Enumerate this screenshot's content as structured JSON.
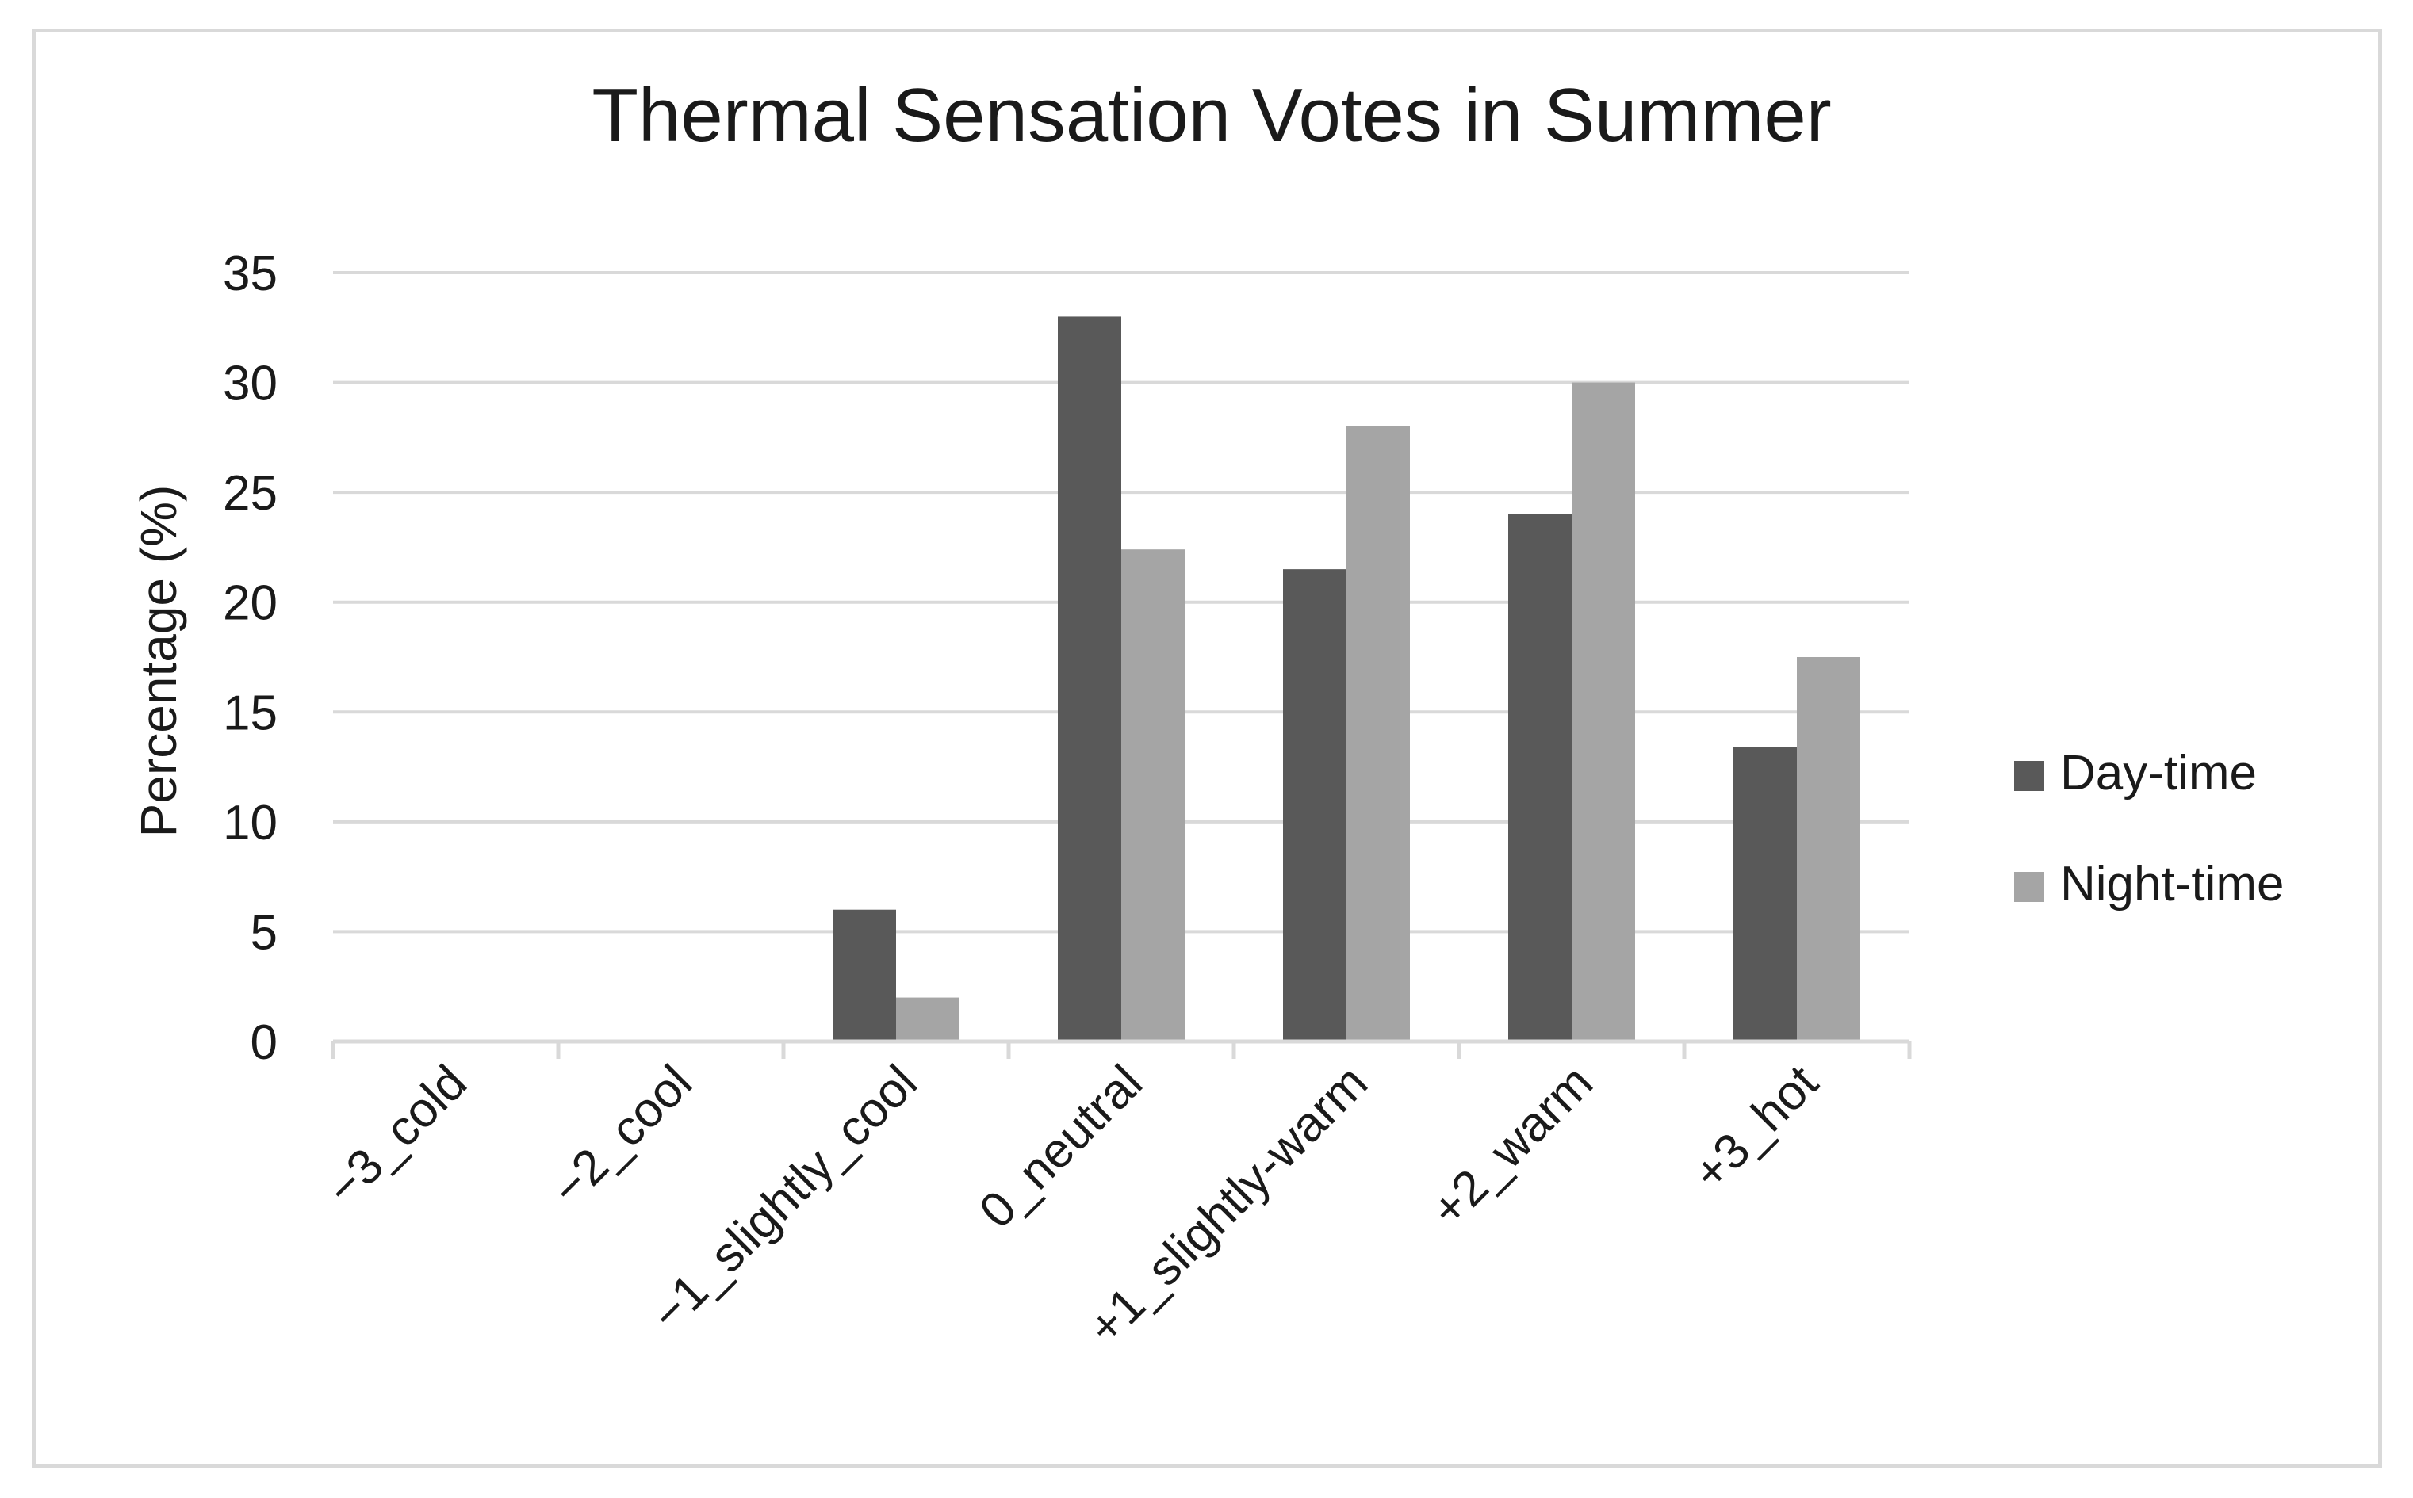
{
  "chart_data": {
    "type": "bar",
    "title": "Thermal Sensation Votes in Summer",
    "ylabel": "Percentage (%)",
    "xlabel": "",
    "ylim": [
      0,
      35
    ],
    "yticks": [
      0,
      5,
      10,
      15,
      20,
      25,
      30,
      35
    ],
    "grid": true,
    "legend_position": "right",
    "categories": [
      "−3_cold",
      "−2_cool",
      "−1_slightly_cool",
      "0_neutral",
      "+1_slightly-warm",
      "+2_warm",
      "+3_hot"
    ],
    "series": [
      {
        "name": "Day-time",
        "color": "#595959",
        "values": [
          0,
          0,
          6,
          33,
          21.5,
          24,
          13.4
        ]
      },
      {
        "name": "Night-time",
        "color": "#a5a5a5",
        "values": [
          0,
          0,
          2,
          22.4,
          28,
          30,
          17.5
        ]
      }
    ]
  }
}
